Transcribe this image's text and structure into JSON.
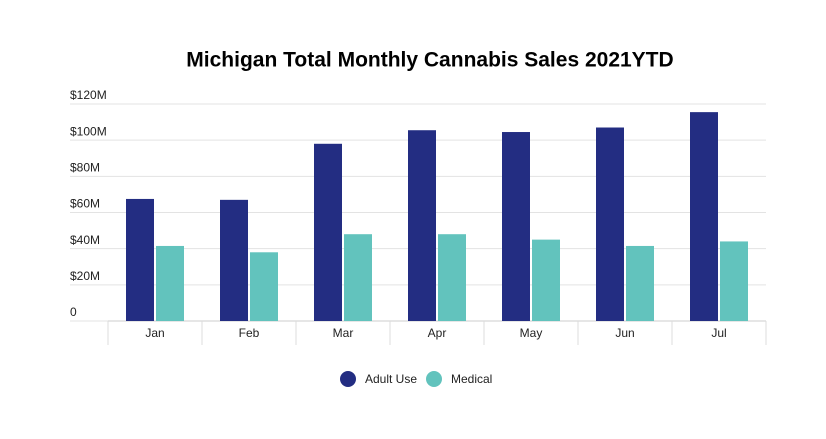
{
  "chart_data": {
    "type": "bar",
    "title": "Michigan Total Monthly Cannabis Sales 2021YTD",
    "categories": [
      "Jan",
      "Feb",
      "Mar",
      "Apr",
      "May",
      "Jun",
      "Jul"
    ],
    "series": [
      {
        "name": "Adult Use",
        "color": "#232d82",
        "values": [
          67.5,
          67,
          98,
          105.5,
          104.5,
          107,
          115.5
        ]
      },
      {
        "name": "Medical",
        "color": "#62c3bd",
        "values": [
          41.5,
          38,
          48,
          48,
          45,
          41.5,
          44
        ]
      }
    ],
    "ylim": [
      0,
      120
    ],
    "yticks": [
      0,
      {
        "value": 20,
        "label": "$20M"
      },
      {
        "value": 40,
        "label": "$40M"
      },
      {
        "value": 60,
        "label": "$60M"
      },
      {
        "value": 80,
        "label": "$80M"
      },
      {
        "value": 100,
        "label": "$100M"
      },
      {
        "value": 120,
        "label": "$120M"
      }
    ],
    "grid": true
  }
}
